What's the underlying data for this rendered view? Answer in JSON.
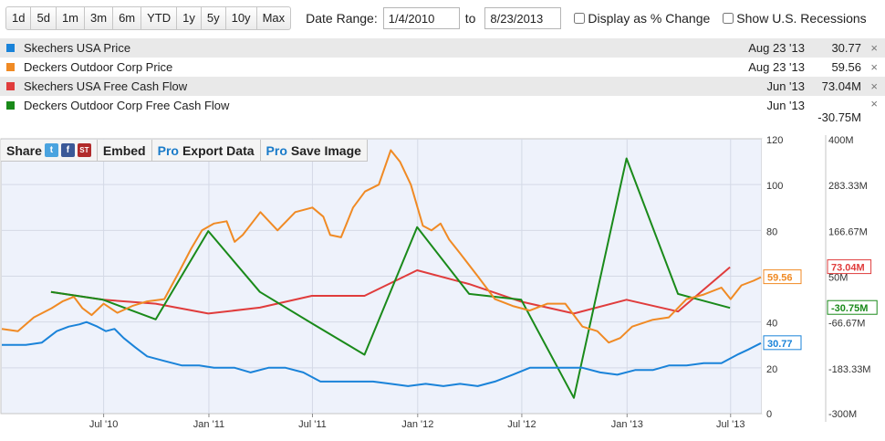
{
  "toolbar": {
    "ranges": [
      "1d",
      "5d",
      "1m",
      "3m",
      "6m",
      "YTD",
      "1y",
      "5y",
      "10y",
      "Max"
    ],
    "date_range_label": "Date Range:",
    "start_date": "1/4/2010",
    "to_label": "to",
    "end_date": "8/23/2013",
    "pct_change_label": "Display as % Change",
    "recessions_label": "Show U.S. Recessions"
  },
  "legend": [
    {
      "name": "Skechers USA Price",
      "date": "Aug 23 '13",
      "value": "30.77",
      "color": "#1a83d9"
    },
    {
      "name": "Deckers Outdoor Corp Price",
      "date": "Aug 23 '13",
      "value": "59.56",
      "color": "#f08a24"
    },
    {
      "name": "Skechers USA Free Cash Flow",
      "date": "Jun '13",
      "value": "73.04M",
      "color": "#e03c3c"
    },
    {
      "name": "Deckers Outdoor Corp Free Cash Flow",
      "date": "Jun '13",
      "value": "-30.75M",
      "color": "#1a8a1a"
    }
  ],
  "legend_close": "×",
  "actions": {
    "share": "Share",
    "twitter": "t",
    "facebook": "f",
    "stocktwits": "ST",
    "embed": "Embed",
    "pro": "Pro",
    "export": "Export Data",
    "save": "Save Image"
  },
  "chart_data": {
    "type": "line",
    "x_axis": {
      "type": "date",
      "min": "2010-01-04",
      "max": "2013-08-23",
      "tick_labels": [
        "Jul '10",
        "Jan '11",
        "Jul '11",
        "Jan '12",
        "Jul '12",
        "Jan '13",
        "Jul '13"
      ],
      "tick_dates": [
        "2010-07-01",
        "2011-01-01",
        "2011-07-01",
        "2012-01-01",
        "2012-07-01",
        "2013-01-01",
        "2013-07-01"
      ]
    },
    "y_left": {
      "min": 0,
      "max": 120,
      "ticks": [
        "120",
        "100",
        "80",
        "60",
        "40",
        "20",
        "0"
      ]
    },
    "y_right": {
      "min": -300,
      "max": 400,
      "unit": "M",
      "ticks": [
        "400M",
        "283.33M",
        "166.67M",
        "50M",
        "-66.67M",
        "-183.33M",
        "-300M"
      ]
    },
    "grid": true,
    "end_labels": [
      {
        "series": "Deckers Outdoor Corp Price",
        "text": "59.56",
        "axis": "left",
        "value": 59.56,
        "color": "#f08a24"
      },
      {
        "series": "Skechers USA Price",
        "text": "30.77",
        "axis": "left",
        "value": 30.77,
        "color": "#1a83d9"
      },
      {
        "series": "Skechers USA Free Cash Flow",
        "text": "73.04M",
        "axis": "right",
        "value": 73.04,
        "color": "#e03c3c"
      },
      {
        "series": "Deckers Outdoor Corp Free Cash Flow",
        "text": "-30.75M",
        "axis": "right",
        "value": -30.75,
        "color": "#1a8a1a"
      }
    ],
    "series": [
      {
        "name": "Skechers USA Price",
        "axis": "left",
        "color": "#1a83d9",
        "points": [
          [
            "2010-01-04",
            30
          ],
          [
            "2010-02-15",
            30
          ],
          [
            "2010-03-15",
            31
          ],
          [
            "2010-04-10",
            36
          ],
          [
            "2010-05-01",
            38
          ],
          [
            "2010-05-20",
            39
          ],
          [
            "2010-06-01",
            40
          ],
          [
            "2010-06-20",
            38
          ],
          [
            "2010-07-05",
            36
          ],
          [
            "2010-07-20",
            37
          ],
          [
            "2010-08-05",
            33
          ],
          [
            "2010-08-25",
            29
          ],
          [
            "2010-09-15",
            25
          ],
          [
            "2010-10-15",
            23
          ],
          [
            "2010-11-15",
            21
          ],
          [
            "2010-12-15",
            21
          ],
          [
            "2011-01-10",
            20
          ],
          [
            "2011-02-15",
            20
          ],
          [
            "2011-03-15",
            18
          ],
          [
            "2011-04-15",
            20
          ],
          [
            "2011-05-15",
            20
          ],
          [
            "2011-06-15",
            18
          ],
          [
            "2011-07-15",
            14
          ],
          [
            "2011-08-15",
            14
          ],
          [
            "2011-09-15",
            14
          ],
          [
            "2011-10-15",
            14
          ],
          [
            "2011-11-15",
            13
          ],
          [
            "2011-12-15",
            12
          ],
          [
            "2012-01-15",
            13
          ],
          [
            "2012-02-15",
            12
          ],
          [
            "2012-03-15",
            13
          ],
          [
            "2012-04-15",
            12
          ],
          [
            "2012-05-15",
            14
          ],
          [
            "2012-06-15",
            17
          ],
          [
            "2012-07-15",
            20
          ],
          [
            "2012-08-15",
            20
          ],
          [
            "2012-09-15",
            20
          ],
          [
            "2012-10-15",
            20
          ],
          [
            "2012-11-15",
            18
          ],
          [
            "2012-12-15",
            17
          ],
          [
            "2013-01-15",
            19
          ],
          [
            "2013-02-15",
            19
          ],
          [
            "2013-03-15",
            21
          ],
          [
            "2013-04-15",
            21
          ],
          [
            "2013-05-15",
            22
          ],
          [
            "2013-06-15",
            22
          ],
          [
            "2013-07-15",
            26
          ],
          [
            "2013-08-01",
            28
          ],
          [
            "2013-08-23",
            30.77
          ]
        ]
      },
      {
        "name": "Deckers Outdoor Corp Price",
        "axis": "left",
        "color": "#f08a24",
        "points": [
          [
            "2010-01-04",
            37
          ],
          [
            "2010-02-01",
            36
          ],
          [
            "2010-03-01",
            42
          ],
          [
            "2010-04-01",
            46
          ],
          [
            "2010-04-20",
            49
          ],
          [
            "2010-05-10",
            51
          ],
          [
            "2010-05-25",
            46
          ],
          [
            "2010-06-10",
            43
          ],
          [
            "2010-07-01",
            48
          ],
          [
            "2010-07-25",
            44
          ],
          [
            "2010-08-20",
            47
          ],
          [
            "2010-09-15",
            49
          ],
          [
            "2010-10-15",
            50
          ],
          [
            "2010-11-10",
            62
          ],
          [
            "2010-12-01",
            72
          ],
          [
            "2010-12-20",
            80
          ],
          [
            "2011-01-10",
            83
          ],
          [
            "2011-02-01",
            84
          ],
          [
            "2011-02-15",
            75
          ],
          [
            "2011-03-01",
            78
          ],
          [
            "2011-04-01",
            88
          ],
          [
            "2011-05-01",
            80
          ],
          [
            "2011-06-01",
            88
          ],
          [
            "2011-07-01",
            90
          ],
          [
            "2011-07-20",
            86
          ],
          [
            "2011-08-01",
            78
          ],
          [
            "2011-08-20",
            77
          ],
          [
            "2011-09-10",
            90
          ],
          [
            "2011-10-01",
            97
          ],
          [
            "2011-10-25",
            100
          ],
          [
            "2011-11-15",
            115
          ],
          [
            "2011-12-01",
            110
          ],
          [
            "2011-12-20",
            100
          ],
          [
            "2012-01-10",
            82
          ],
          [
            "2012-01-25",
            80
          ],
          [
            "2012-02-10",
            83
          ],
          [
            "2012-02-25",
            76
          ],
          [
            "2012-03-15",
            70
          ],
          [
            "2012-04-15",
            60
          ],
          [
            "2012-05-15",
            50
          ],
          [
            "2012-06-15",
            47
          ],
          [
            "2012-07-15",
            45
          ],
          [
            "2012-08-15",
            48
          ],
          [
            "2012-09-15",
            48
          ],
          [
            "2012-10-15",
            38
          ],
          [
            "2012-11-10",
            36
          ],
          [
            "2012-11-30",
            31
          ],
          [
            "2012-12-20",
            33
          ],
          [
            "2013-01-10",
            38
          ],
          [
            "2013-02-15",
            41
          ],
          [
            "2013-03-15",
            42
          ],
          [
            "2013-04-15",
            50
          ],
          [
            "2013-05-15",
            52
          ],
          [
            "2013-06-15",
            55
          ],
          [
            "2013-07-01",
            50
          ],
          [
            "2013-07-20",
            56
          ],
          [
            "2013-08-10",
            58
          ],
          [
            "2013-08-23",
            59.56
          ]
        ]
      },
      {
        "name": "Skechers USA Free Cash Flow",
        "axis": "right",
        "color": "#e03c3c",
        "points": [
          [
            "2010-03-31",
            10
          ],
          [
            "2010-06-30",
            -10
          ],
          [
            "2010-09-30",
            -20
          ],
          [
            "2010-12-31",
            -45
          ],
          [
            "2011-03-31",
            -30
          ],
          [
            "2011-06-30",
            0
          ],
          [
            "2011-09-30",
            0
          ],
          [
            "2011-12-31",
            65
          ],
          [
            "2012-03-31",
            30
          ],
          [
            "2012-06-30",
            -15
          ],
          [
            "2012-09-30",
            -45
          ],
          [
            "2012-12-31",
            -10
          ],
          [
            "2013-03-31",
            -40
          ],
          [
            "2013-06-30",
            73.04
          ]
        ]
      },
      {
        "name": "Deckers Outdoor Corp Free Cash Flow",
        "axis": "right",
        "color": "#1a8a1a",
        "points": [
          [
            "2010-03-31",
            10
          ],
          [
            "2010-06-30",
            -10
          ],
          [
            "2010-09-30",
            -60
          ],
          [
            "2010-12-31",
            165
          ],
          [
            "2011-03-31",
            10
          ],
          [
            "2011-06-30",
            -70
          ],
          [
            "2011-09-30",
            -150
          ],
          [
            "2011-12-31",
            175
          ],
          [
            "2012-03-31",
            5
          ],
          [
            "2012-06-30",
            -10
          ],
          [
            "2012-09-30",
            -260
          ],
          [
            "2012-12-31",
            350
          ],
          [
            "2013-03-31",
            5
          ],
          [
            "2013-06-30",
            -30.75
          ]
        ]
      }
    ]
  }
}
